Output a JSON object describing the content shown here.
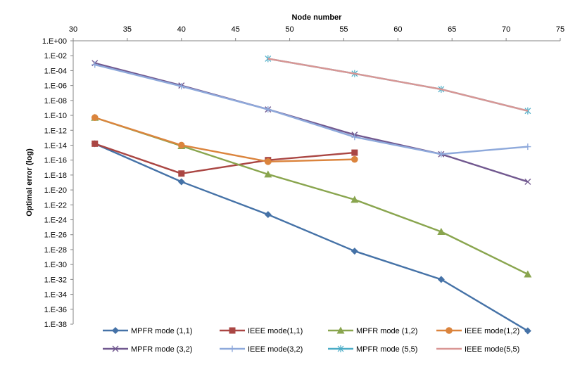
{
  "chart_data": {
    "type": "line",
    "xlabel": "Node number",
    "ylabel": "Optimal error (log)",
    "x_axis_position": "top",
    "xlim": [
      30,
      75
    ],
    "x_ticks": [
      "30",
      "35",
      "40",
      "45",
      "50",
      "55",
      "60",
      "65",
      "70",
      "75"
    ],
    "x_tick_values": [
      30,
      35,
      40,
      45,
      50,
      55,
      60,
      65,
      70,
      75
    ],
    "ylim_exponent": [
      -38,
      0
    ],
    "y_ticks": [
      "1.E+00",
      "1.E-02",
      "1.E-04",
      "1.E-06",
      "1.E-08",
      "1.E-10",
      "1.E-12",
      "1.E-14",
      "1.E-16",
      "1.E-18",
      "1.E-20",
      "1.E-22",
      "1.E-24",
      "1.E-26",
      "1.E-28",
      "1.E-30",
      "1.E-32",
      "1.E-34",
      "1.E-36",
      "1.E-38"
    ],
    "y_tick_exponents": [
      0,
      -2,
      -4,
      -6,
      -8,
      -10,
      -12,
      -14,
      -16,
      -18,
      -20,
      -22,
      -24,
      -26,
      -28,
      -30,
      -32,
      -34,
      -36,
      -38
    ],
    "legend_position": "bottom",
    "series": [
      {
        "name": "MPFR mode (1,1)",
        "color": "#4572A7",
        "marker": "diamond",
        "x": [
          32,
          40,
          48,
          56,
          64,
          72
        ],
        "log10_y": [
          -13.8,
          -18.9,
          -23.3,
          -28.2,
          -32.0,
          -38.9
        ]
      },
      {
        "name": "IEEE mode(1,1)",
        "color": "#AA4643",
        "marker": "square",
        "x": [
          32,
          40,
          48,
          56
        ],
        "log10_y": [
          -13.8,
          -17.8,
          -16.0,
          -15.0
        ]
      },
      {
        "name": "MPFR mode (1,2)",
        "color": "#89A54E",
        "marker": "triangle",
        "x": [
          32,
          40,
          48,
          56,
          64,
          72
        ],
        "log10_y": [
          -10.3,
          -14.1,
          -17.9,
          -21.3,
          -25.6,
          -31.3
        ]
      },
      {
        "name": "IEEE mode(1,2)",
        "color": "#DB843D",
        "marker": "circle",
        "x": [
          32,
          40,
          48,
          56
        ],
        "log10_y": [
          -10.3,
          -14.0,
          -16.2,
          -15.9
        ]
      },
      {
        "name": "MPFR mode (3,2)",
        "color": "#71588F",
        "marker": "x",
        "x": [
          32,
          40,
          48,
          56,
          64,
          72
        ],
        "log10_y": [
          -3.0,
          -6.0,
          -9.2,
          -12.6,
          -15.2,
          -18.9
        ]
      },
      {
        "name": "IEEE mode(3,2)",
        "color": "#8EA9DB",
        "marker": "plus",
        "x": [
          32,
          40,
          48,
          56,
          64,
          72
        ],
        "log10_y": [
          -3.2,
          -6.1,
          -9.2,
          -12.9,
          -15.2,
          -14.2
        ]
      },
      {
        "name": "MPFR mode (5,5)",
        "color": "#4BACC6",
        "marker": "asterisk",
        "x": [
          48,
          56,
          64,
          72
        ],
        "log10_y": [
          -2.4,
          -4.4,
          -6.5,
          -9.4
        ]
      },
      {
        "name": "IEEE mode(5,5)",
        "color": "#D99694",
        "marker": "line",
        "x": [
          48,
          56,
          64,
          72
        ],
        "log10_y": [
          -2.4,
          -4.4,
          -6.5,
          -9.4
        ]
      }
    ]
  }
}
